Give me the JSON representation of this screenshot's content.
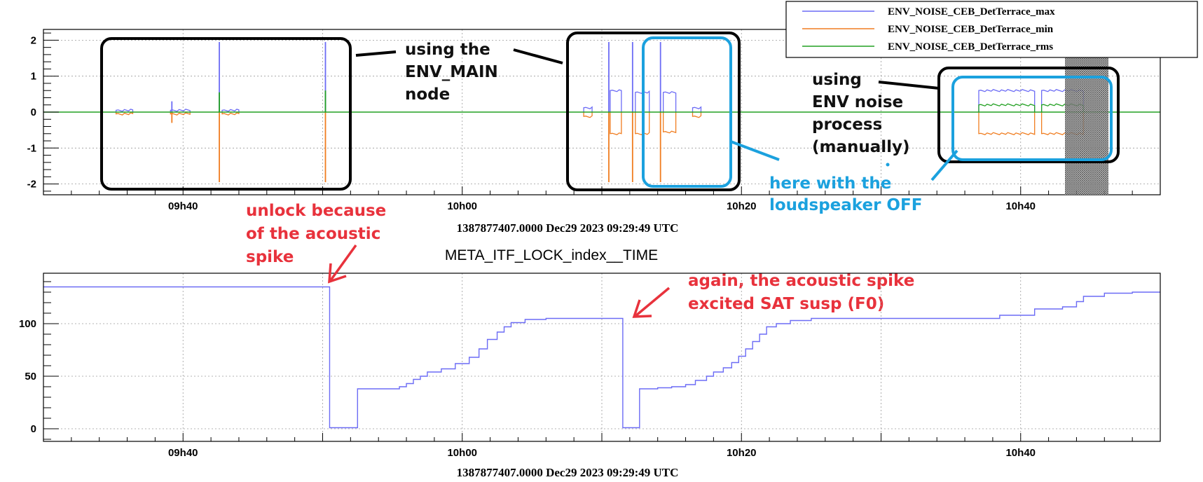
{
  "chart_data": [
    {
      "type": "line",
      "title": "",
      "date_label": "1387877407.0000 Dec29 2023 09:29:49 UTC",
      "x_tick_labels": [
        "09h40",
        "10h00",
        "10h20",
        "10h40"
      ],
      "x_tick_minutes": [
        40,
        60,
        80,
        100
      ],
      "xlim_minutes": [
        30,
        110
      ],
      "y_tick_labels": [
        "2",
        "1",
        "0",
        "-1",
        "-2"
      ],
      "ylim": [
        -2.3,
        2.3
      ],
      "grid": true,
      "legend_position": "top-right",
      "colors": {
        "max": "#6c6cf5",
        "min": "#f07d20",
        "rms": "#22a022",
        "box_black": "#000000",
        "box_blue": "#1ba1de"
      },
      "series": [
        {
          "name": "ENV_NOISE_CEB_DetTerrace_max",
          "color": "#6c6cf5",
          "segments": [
            {
              "start": 35.2,
              "end": 36.4,
              "value": 0.05
            },
            {
              "start": 39.1,
              "end": 40.5,
              "value": 0.05
            },
            {
              "start": 42.8,
              "end": 44.0,
              "value": 0.05
            },
            {
              "start": 68.7,
              "end": 69.3,
              "value": 0.12
            },
            {
              "start": 70.6,
              "end": 71.4,
              "value": 0.6
            },
            {
              "start": 72.4,
              "end": 73.4,
              "value": 0.55
            },
            {
              "start": 74.4,
              "end": 75.3,
              "value": 0.55
            },
            {
              "start": 76.5,
              "end": 77.1,
              "value": 0.12
            },
            {
              "start": 97.0,
              "end": 101.0,
              "value": 0.6
            },
            {
              "start": 101.5,
              "end": 104.5,
              "value": 0.6
            }
          ],
          "spikes": [
            {
              "x": 39.2,
              "value": 0.3
            },
            {
              "x": 42.6,
              "value": 1.95
            },
            {
              "x": 50.2,
              "value": 1.95
            },
            {
              "x": 70.5,
              "value": 1.95
            },
            {
              "x": 72.2,
              "value": 1.95
            },
            {
              "x": 74.2,
              "value": 1.95
            }
          ]
        },
        {
          "name": "ENV_NOISE_CEB_DetTerrace_min",
          "color": "#f07d20",
          "segments": [
            {
              "start": 35.2,
              "end": 36.4,
              "value": -0.05
            },
            {
              "start": 39.1,
              "end": 40.5,
              "value": -0.05
            },
            {
              "start": 42.8,
              "end": 44.0,
              "value": -0.05
            },
            {
              "start": 68.7,
              "end": 69.3,
              "value": -0.12
            },
            {
              "start": 70.6,
              "end": 71.4,
              "value": -0.6
            },
            {
              "start": 72.4,
              "end": 73.4,
              "value": -0.6
            },
            {
              "start": 74.4,
              "end": 75.3,
              "value": -0.55
            },
            {
              "start": 76.5,
              "end": 77.1,
              "value": -0.12
            },
            {
              "start": 97.0,
              "end": 101.0,
              "value": -0.6
            },
            {
              "start": 101.5,
              "end": 104.5,
              "value": -0.6
            }
          ],
          "spikes": [
            {
              "x": 39.2,
              "value": -0.3
            },
            {
              "x": 42.6,
              "value": -1.95
            },
            {
              "x": 50.2,
              "value": -1.95
            },
            {
              "x": 70.5,
              "value": -1.95
            },
            {
              "x": 72.2,
              "value": -1.95
            },
            {
              "x": 74.2,
              "value": -1.95
            }
          ]
        },
        {
          "name": "ENV_NOISE_CEB_DetTerrace_rms",
          "color": "#22a022",
          "baseline": 0,
          "segments": [
            {
              "start": 97.0,
              "end": 101.0,
              "value": 0.2
            },
            {
              "start": 101.5,
              "end": 104.5,
              "value": 0.2
            }
          ],
          "spikes": [
            {
              "x": 42.6,
              "value": 0.55
            },
            {
              "x": 50.2,
              "value": 0.6
            }
          ]
        }
      ]
    },
    {
      "type": "line",
      "title": "META_ITF_LOCK_index__TIME",
      "date_label": "1387877407.0000 Dec29 2023 09:29:49 UTC",
      "x_tick_labels": [
        "09h40",
        "10h00",
        "10h20",
        "10h40"
      ],
      "x_tick_minutes": [
        40,
        60,
        80,
        100
      ],
      "xlim_minutes": [
        30,
        110
      ],
      "y_tick_labels": [
        "100",
        "50",
        "0"
      ],
      "y_tick_values": [
        100,
        50,
        0
      ],
      "ylim": [
        -12,
        148
      ],
      "grid": true,
      "series": [
        {
          "name": "",
          "color": "#6c6cf5",
          "points": [
            [
              30,
              135
            ],
            [
              50.5,
              135
            ],
            [
              50.5,
              1
            ],
            [
              52.5,
              1
            ],
            [
              52.5,
              38
            ],
            [
              54,
              38
            ],
            [
              55,
              38
            ],
            [
              55.5,
              40
            ],
            [
              56,
              43
            ],
            [
              56.5,
              47
            ],
            [
              57,
              50
            ],
            [
              57.5,
              54
            ],
            [
              58.5,
              57
            ],
            [
              59.5,
              62
            ],
            [
              60.5,
              68
            ],
            [
              61.2,
              76
            ],
            [
              61.8,
              85
            ],
            [
              62.5,
              92
            ],
            [
              63,
              97
            ],
            [
              63.5,
              101
            ],
            [
              64.5,
              104
            ],
            [
              66,
              105
            ],
            [
              71.5,
              105
            ],
            [
              71.5,
              1
            ],
            [
              72.7,
              1
            ],
            [
              72.7,
              38
            ],
            [
              74,
              39
            ],
            [
              75,
              40
            ],
            [
              76,
              42
            ],
            [
              76.7,
              46
            ],
            [
              77.5,
              50
            ],
            [
              78,
              54
            ],
            [
              78.7,
              58
            ],
            [
              79.3,
              63
            ],
            [
              79.8,
              69
            ],
            [
              80.3,
              76
            ],
            [
              80.8,
              83
            ],
            [
              81.3,
              90
            ],
            [
              81.8,
              97
            ],
            [
              82.5,
              100
            ],
            [
              83.5,
              103
            ],
            [
              85,
              105
            ],
            [
              97,
              105
            ],
            [
              98.5,
              108
            ],
            [
              101,
              114
            ],
            [
              103,
              116
            ],
            [
              104,
              121
            ],
            [
              104.5,
              126
            ],
            [
              106,
              129
            ],
            [
              108,
              130
            ],
            [
              110,
              130
            ]
          ]
        }
      ]
    }
  ],
  "legend": {
    "entries": [
      "ENV_NOISE_CEB_DetTerrace_max",
      "ENV_NOISE_CEB_DetTerrace_min",
      "ENV_NOISE_CEB_DetTerrace_rms"
    ]
  },
  "annotations": {
    "env_main": [
      "using the",
      "ENV_MAIN",
      "node"
    ],
    "env_noise": [
      "using",
      "ENV noise",
      "process",
      "(manually)"
    ],
    "loudspeaker": [
      "here with the",
      "loudspeaker OFF"
    ],
    "unlock": [
      "unlock because",
      "of the acoustic",
      "spike"
    ],
    "again": [
      "again, the acoustic spike",
      "excited SAT susp (F0)"
    ]
  }
}
